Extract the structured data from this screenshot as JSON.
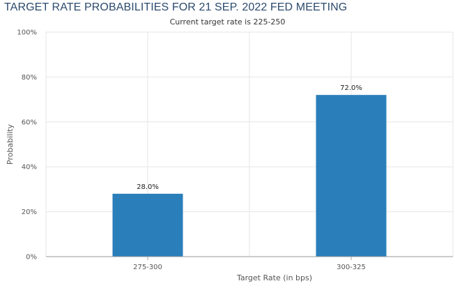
{
  "chart_data": {
    "type": "bar",
    "title": "TARGET RATE PROBABILITIES FOR 21 SEP. 2022 FED MEETING",
    "subtitle": "Current target rate is 225-250",
    "xlabel": "Target Rate (in bps)",
    "ylabel": "Probability",
    "categories": [
      "275-300",
      "300-325"
    ],
    "values": [
      28.0,
      72.0
    ],
    "data_labels": [
      "28.0%",
      "72.0%"
    ],
    "ylim": [
      0,
      100
    ],
    "yticks": [
      0,
      20,
      40,
      60,
      80,
      100
    ],
    "ytick_labels": [
      "0%",
      "20%",
      "40%",
      "60%",
      "80%",
      "100%"
    ],
    "grid": true,
    "bar_color": "#2a7fba"
  }
}
